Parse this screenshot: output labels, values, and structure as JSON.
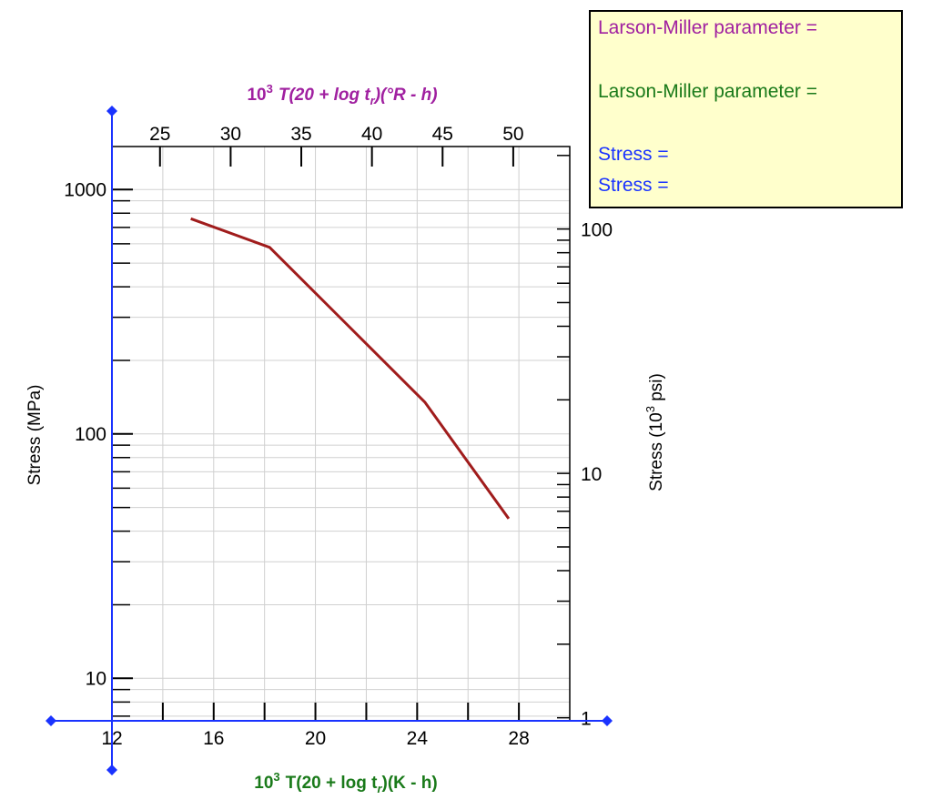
{
  "info_box": {
    "lm_param_1": "Larson-Miller parameter =",
    "lm_param_2": "Larson-Miller parameter =",
    "stress_1": "Stress =",
    "stress_2": "Stress =",
    "colors": {
      "lm_param_1": "#a020a0",
      "lm_param_2": "#1a7a1a",
      "stress": "#1a33ff"
    }
  },
  "chart_data": {
    "type": "line",
    "title": "",
    "xlabel_bottom": {
      "prefix": "10",
      "sup": "3",
      "formula": "T(20 + log t",
      "sub": "r",
      "suffix": ")(K - h)"
    },
    "xlabel_top": {
      "prefix": "10",
      "sup": "3",
      "formula": "T(20 + log t",
      "sub": "r",
      "suffix": ")(°R - h)"
    },
    "ylabel_left": "Stress (MPa)",
    "ylabel_right": {
      "prefix": "Stress (10",
      "sup": "3",
      "suffix": " psi)"
    },
    "x_bottom_ticks": [
      "12",
      "16",
      "20",
      "24",
      "28"
    ],
    "x_bottom_tick_values": [
      12,
      16,
      20,
      24,
      28
    ],
    "x_bottom_range": [
      12,
      30
    ],
    "x_top_ticks": [
      "25",
      "30",
      "35",
      "40",
      "45",
      "50"
    ],
    "x_top_tick_values": [
      25,
      30,
      35,
      40,
      45,
      50
    ],
    "y_left_ticks": [
      "10",
      "100",
      "1000"
    ],
    "y_left_tick_values": [
      10,
      100,
      1000
    ],
    "y_left_range": [
      6.7,
      1500
    ],
    "y_left_scale": "log",
    "y_right_ticks": [
      "1",
      "10",
      "100"
    ],
    "y_right_tick_values": [
      1,
      10,
      100
    ],
    "grid": true,
    "series": [
      {
        "color": "#a01c1c",
        "x": [
          15.1,
          18.2,
          24.3,
          27.6
        ],
        "y": [
          760,
          580,
          135,
          45
        ]
      }
    ],
    "colors": {
      "axis": "#1a33ff",
      "top_label": "#a020a0",
      "bottom_label": "#1a7a1a",
      "grid": "#d0d0d0"
    }
  }
}
